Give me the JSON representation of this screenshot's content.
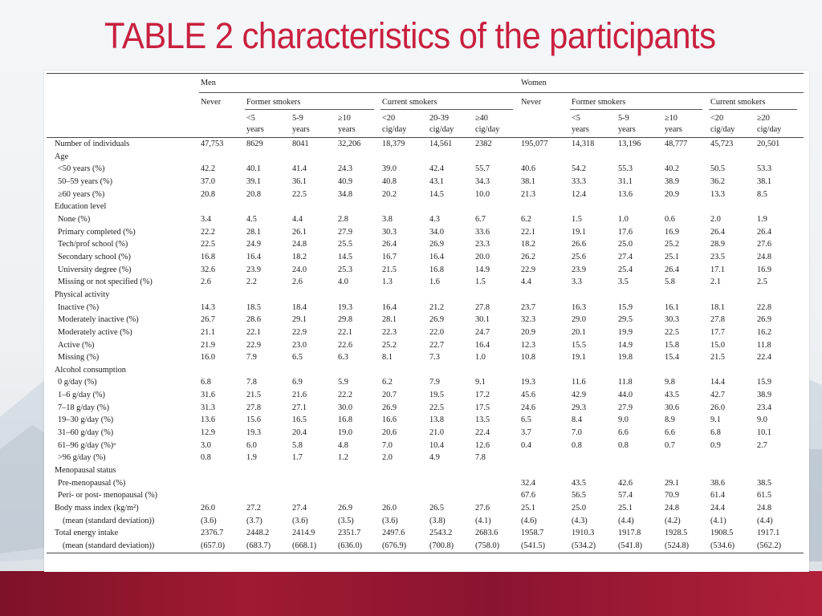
{
  "title": "TABLE 2 characteristics of the participants",
  "colors": {
    "title": "#c9203f",
    "band": "#9b1832"
  },
  "groups": {
    "men": "Men",
    "women": "Women"
  },
  "subgroups": {
    "never": "Never",
    "former": "Former smokers",
    "current": "Current smokers"
  },
  "columns": [
    [
      "<5",
      "years"
    ],
    [
      "5-9",
      "years"
    ],
    [
      "≥10",
      "years"
    ],
    [
      "<20",
      "cig/day"
    ],
    [
      "20-39",
      "cig/day"
    ],
    [
      "≥40",
      "cig/day"
    ],
    [
      "<5",
      "years"
    ],
    [
      "5-9",
      "years"
    ],
    [
      "≥10",
      "years"
    ],
    [
      "<20",
      "cig/day"
    ],
    [
      "≥20",
      "cig/day"
    ]
  ],
  "rows": [
    {
      "label": "Number of individuals",
      "level": 0,
      "values": [
        "47,753",
        "8629",
        "8041",
        "32,206",
        "18,379",
        "14,561",
        "2382",
        "195,077",
        "14,318",
        "13,196",
        "48,777",
        "45,723",
        "20,501"
      ]
    },
    {
      "label": "Age",
      "level": 0,
      "values": []
    },
    {
      "label": "<50 years (%)",
      "level": 1,
      "values": [
        "42.2",
        "40.1",
        "41.4",
        "24.3",
        "39.0",
        "42.4",
        "55.7",
        "40.6",
        "54.2",
        "55.3",
        "40.2",
        "50.5",
        "53.3"
      ]
    },
    {
      "label": "50–59 years (%)",
      "level": 1,
      "values": [
        "37.0",
        "39.1",
        "36.1",
        "40.9",
        "40.8",
        "43.1",
        "34.3",
        "38.1",
        "33.3",
        "31.1",
        "38.9",
        "36.2",
        "38.1"
      ]
    },
    {
      "label": "≥60 years (%)",
      "level": 1,
      "values": [
        "20.8",
        "20.8",
        "22.5",
        "34.8",
        "20.2",
        "14.5",
        "10.0",
        "21.3",
        "12.4",
        "13.6",
        "20.9",
        "13.3",
        "8.5"
      ]
    },
    {
      "label": "Education level",
      "level": 0,
      "values": []
    },
    {
      "label": "None (%)",
      "level": 1,
      "values": [
        "3.4",
        "4.5",
        "4.4",
        "2.8",
        "3.8",
        "4.3",
        "6.7",
        "6.2",
        "1.5",
        "1.0",
        "0.6",
        "2.0",
        "1.9"
      ]
    },
    {
      "label": "Primary completed (%)",
      "level": 1,
      "values": [
        "22.2",
        "28.1",
        "26.1",
        "27.9",
        "30.3",
        "34.0",
        "33.6",
        "22.1",
        "19.1",
        "17.6",
        "16.9",
        "26.4",
        "26.4"
      ]
    },
    {
      "label": "Tech/prof school (%)",
      "level": 1,
      "values": [
        "22.5",
        "24.9",
        "24.8",
        "25.5",
        "26.4",
        "26.9",
        "23.3",
        "18.2",
        "26.6",
        "25.0",
        "25.2",
        "28.9",
        "27.6"
      ]
    },
    {
      "label": "Secondary school (%)",
      "level": 1,
      "values": [
        "16.8",
        "16.4",
        "18.2",
        "14.5",
        "16.7",
        "16.4",
        "20.0",
        "26.2",
        "25.6",
        "27.4",
        "25.1",
        "23.5",
        "24.8"
      ]
    },
    {
      "label": "University degree (%)",
      "level": 1,
      "values": [
        "32.6",
        "23.9",
        "24.0",
        "25.3",
        "21.5",
        "16.8",
        "14.9",
        "22.9",
        "23.9",
        "25.4",
        "26.4",
        "17.1",
        "16.9"
      ]
    },
    {
      "label": "Missing or not specified (%)",
      "level": 1,
      "values": [
        "2.6",
        "2.2",
        "2.6",
        "4.0",
        "1.3",
        "1.6",
        "1.5",
        "4.4",
        "3.3",
        "3.5",
        "5.8",
        "2.1",
        "2.5"
      ]
    },
    {
      "label": "Physical activity",
      "level": 0,
      "values": []
    },
    {
      "label": "Inactive (%)",
      "level": 1,
      "values": [
        "14.3",
        "18.5",
        "18.4",
        "19.3",
        "16.4",
        "21.2",
        "27.8",
        "23.7",
        "16.3",
        "15.9",
        "16.1",
        "18.1",
        "22.8"
      ]
    },
    {
      "label": "Moderately inactive (%)",
      "level": 1,
      "values": [
        "26.7",
        "28.6",
        "29.1",
        "29.8",
        "28.1",
        "26.9",
        "30.1",
        "32.3",
        "29.0",
        "29.5",
        "30.3",
        "27.8",
        "26.9"
      ]
    },
    {
      "label": "Moderately active (%)",
      "level": 1,
      "values": [
        "21.1",
        "22.1",
        "22.9",
        "22.1",
        "22.3",
        "22.0",
        "24.7",
        "20.9",
        "20.1",
        "19.9",
        "22.5",
        "17.7",
        "16.2"
      ]
    },
    {
      "label": "Active (%)",
      "level": 1,
      "values": [
        "21.9",
        "22.9",
        "23.0",
        "22.6",
        "25.2",
        "22.7",
        "16.4",
        "12.3",
        "15.5",
        "14.9",
        "15.8",
        "15.0",
        "11.8"
      ]
    },
    {
      "label": "Missing (%)",
      "level": 1,
      "values": [
        "16.0",
        "7.9",
        "6.5",
        "6.3",
        "8.1",
        "7.3",
        "1.0",
        "10.8",
        "19.1",
        "19.8",
        "15.4",
        "21.5",
        "22.4"
      ]
    },
    {
      "label": "Alcohol consumption",
      "level": 0,
      "values": []
    },
    {
      "label": "0 g/day (%)",
      "level": 1,
      "values": [
        "6.8",
        "7.8",
        "6.9",
        "5.9",
        "6.2",
        "7.9",
        "9.1",
        "19.3",
        "11.6",
        "11.8",
        "9.8",
        "14.4",
        "15.9"
      ]
    },
    {
      "label": "1–6 g/day (%)",
      "level": 1,
      "values": [
        "31.6",
        "21.5",
        "21.6",
        "22.2",
        "20.7",
        "19.5",
        "17.2",
        "45.6",
        "42.9",
        "44.0",
        "43.5",
        "42.7",
        "38.9"
      ]
    },
    {
      "label": "7–18 g/day (%)",
      "level": 1,
      "values": [
        "31.3",
        "27.8",
        "27.1",
        "30.0",
        "26.9",
        "22.5",
        "17.5",
        "24.6",
        "29.3",
        "27.9",
        "30.6",
        "26.0",
        "23.4"
      ]
    },
    {
      "label": "19–30 g/day (%)",
      "level": 1,
      "values": [
        "13.6",
        "15.6",
        "16.5",
        "16.8",
        "16.6",
        "13.8",
        "13.5",
        "6.5",
        "8.4",
        "9.0",
        "8.9",
        "9.1",
        "9.0"
      ]
    },
    {
      "label": "31–60 g/day (%)",
      "level": 1,
      "values": [
        "12.9",
        "19.3",
        "20.4",
        "19.0",
        "20.6",
        "21.0",
        "22.4",
        "3.7",
        "7.0",
        "6.6",
        "6.6",
        "6.8",
        "10.1"
      ]
    },
    {
      "label": "61–96 g/day (%)ᵃ",
      "level": 1,
      "values": [
        "3.0",
        "6.0",
        "5.8",
        "4.8",
        "7.0",
        "10.4",
        "12.6",
        "0.4",
        "0.8",
        "0.8",
        "0.7",
        "0.9",
        "2.7"
      ]
    },
    {
      "label": ">96 g/day (%)",
      "level": 1,
      "values": [
        "0.8",
        "1.9",
        "1.7",
        "1.2",
        "2.0",
        "4.9",
        "7.8",
        "",
        "",
        "",
        "",
        "",
        ""
      ]
    },
    {
      "label": "Menopausal status",
      "level": 0,
      "values": []
    },
    {
      "label": "Pre-menopausal (%)",
      "level": 1,
      "values": [
        "",
        "",
        "",
        "",
        "",
        "",
        "",
        "32.4",
        "43.5",
        "42.6",
        "29.1",
        "38.6",
        "38.5"
      ]
    },
    {
      "label": "Peri- or post- menopausal (%)",
      "level": 1,
      "values": [
        "",
        "",
        "",
        "",
        "",
        "",
        "",
        "67.6",
        "56.5",
        "57.4",
        "70.9",
        "61.4",
        "61.5"
      ]
    },
    {
      "label": "Body mass index (kg/m²)",
      "level": 0,
      "values": [
        "26.0",
        "27.2",
        "27.4",
        "26.9",
        "26.0",
        "26.5",
        "27.6",
        "25.1",
        "25.0",
        "25.1",
        "24.8",
        "24.4",
        "24.8"
      ]
    },
    {
      "label": "(mean (standard deviation))",
      "level": 2,
      "values": [
        "(3.6)",
        "(3.7)",
        "(3.6)",
        "(3.5)",
        "(3.6)",
        "(3.8)",
        "(4.1)",
        "(4.6)",
        "(4.3)",
        "(4.4)",
        "(4.2)",
        "(4.1)",
        "(4.4)"
      ]
    },
    {
      "label": "Total energy intake",
      "level": 0,
      "values": [
        "2376.7",
        "2448.2",
        "2414.9",
        "2351.7",
        "2497.6",
        "2543.2",
        "2683.6",
        "1958.7",
        "1910.3",
        "1917.8",
        "1928.5",
        "1908.5",
        "1917.1"
      ]
    },
    {
      "label": "(mean (standard deviation))",
      "level": 2,
      "values": [
        "(657.0)",
        "(683.7)",
        "(668.1)",
        "(636.0)",
        "(676.9)",
        "(700.8)",
        "(758.0)",
        "(541.5)",
        "(534.2)",
        "(541.8)",
        "(524.8)",
        "(534.6)",
        "(562.2)"
      ]
    }
  ]
}
